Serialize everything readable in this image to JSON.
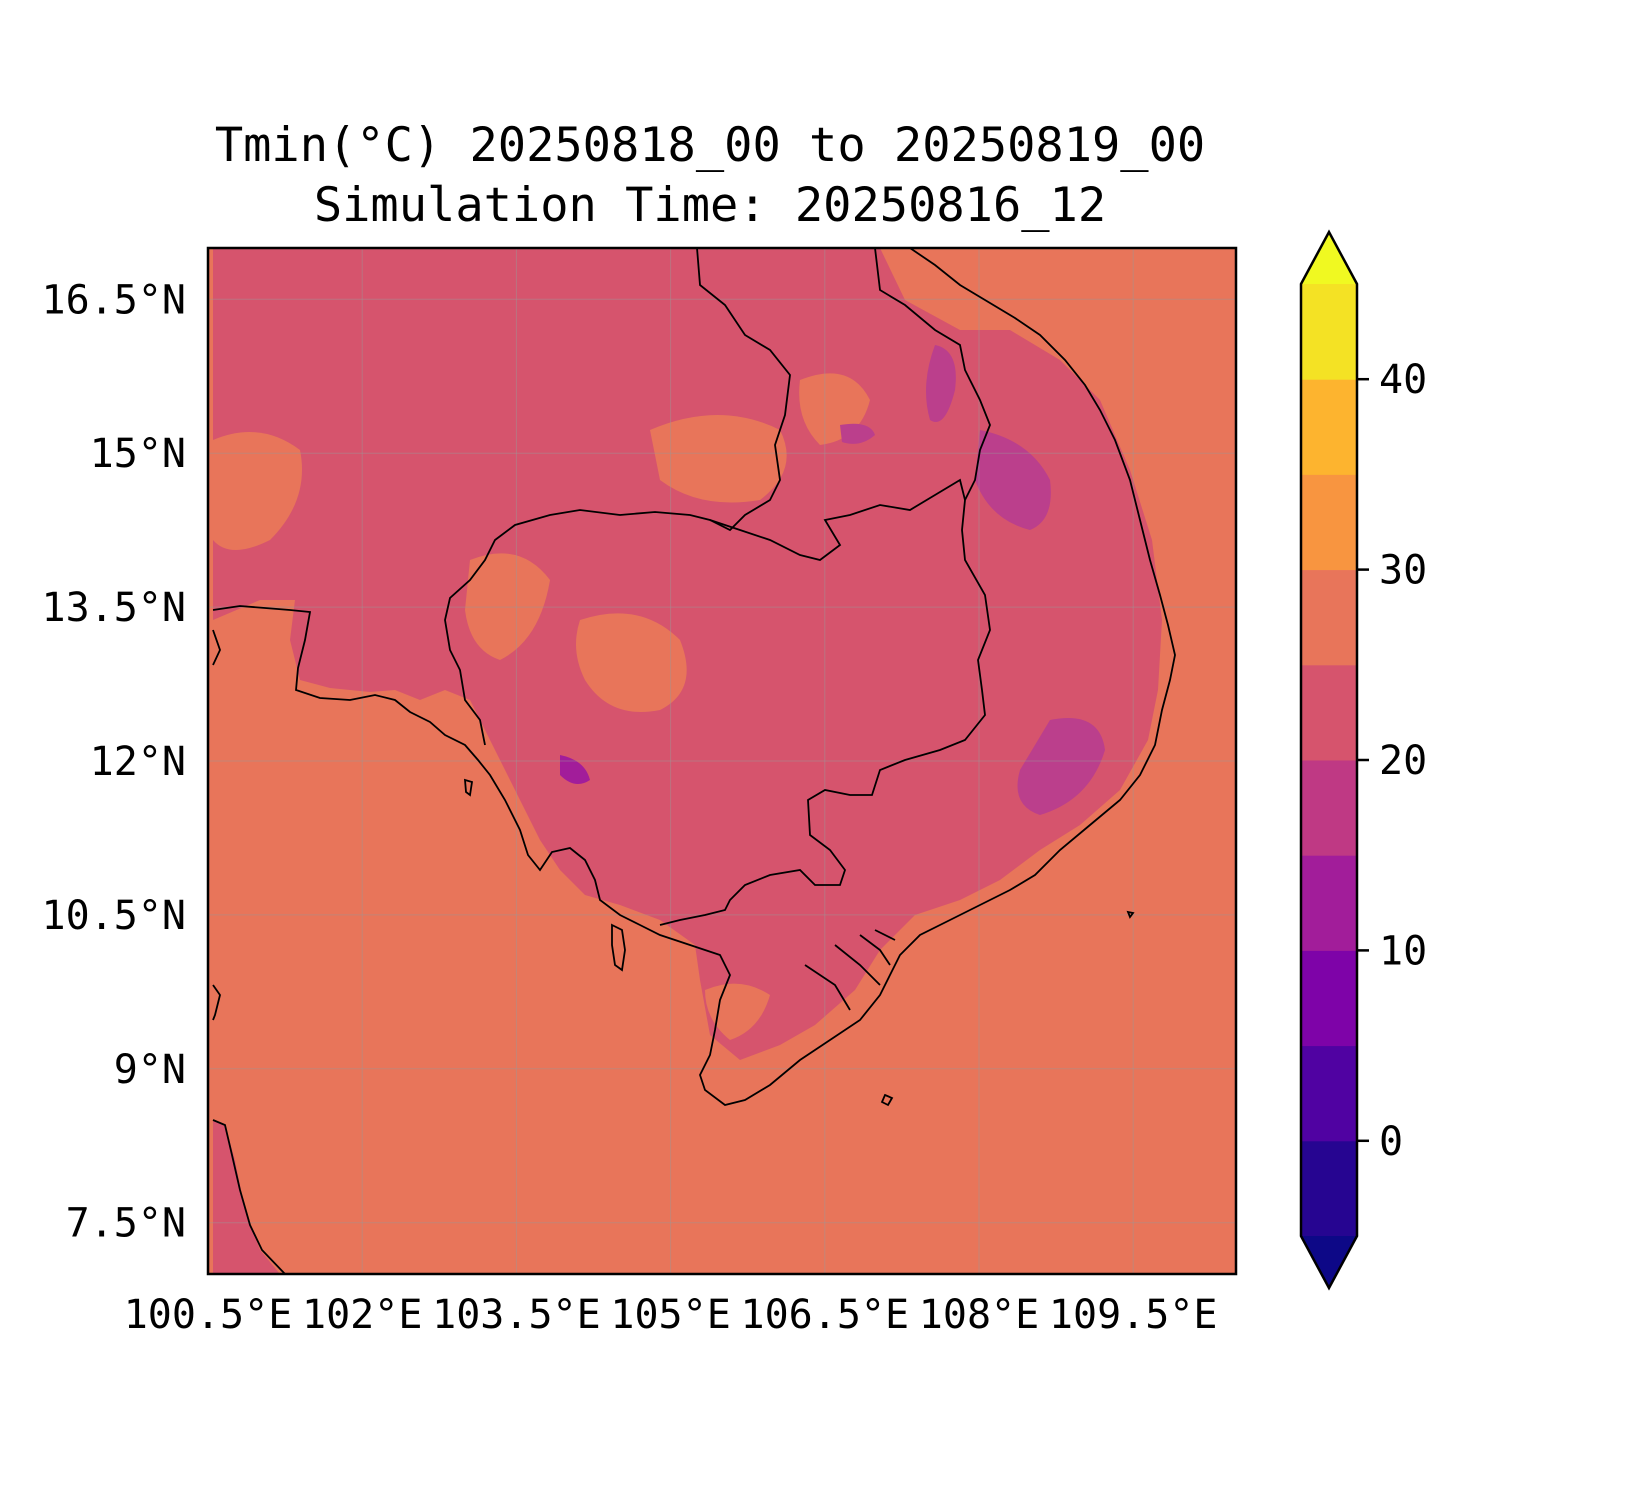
{
  "title": "Tmin(°C) 20250818_00 to 20250819_00",
  "subtitle": "Simulation Time: 20250816_12",
  "map": {
    "extent": {
      "lon_min": 100.5,
      "lon_max": 110.5,
      "lat_min": 7.0,
      "lat_max": 17.0
    },
    "lat_ticks": [
      {
        "value": 16.5,
        "label": "16.5°N"
      },
      {
        "value": 15.0,
        "label": "15°N"
      },
      {
        "value": 13.5,
        "label": "13.5°N"
      },
      {
        "value": 12.0,
        "label": "12°N"
      },
      {
        "value": 10.5,
        "label": "10.5°N"
      },
      {
        "value": 9.0,
        "label": "9°N"
      },
      {
        "value": 7.5,
        "label": "7.5°N"
      }
    ],
    "lon_ticks": [
      {
        "value": 100.5,
        "label": "100.5°E"
      },
      {
        "value": 102.0,
        "label": "102°E"
      },
      {
        "value": 103.5,
        "label": "103.5°E"
      },
      {
        "value": 105.0,
        "label": "105°E"
      },
      {
        "value": 106.5,
        "label": "106.5°E"
      },
      {
        "value": 108.0,
        "label": "108°E"
      },
      {
        "value": 109.5,
        "label": "109.5°E"
      }
    ],
    "fill_colors": {
      "background_25_30": "#e8755a",
      "land_20_25": "#d6546d",
      "band_15_20": "#bb3f8c",
      "band_10_15": "#a21d9a"
    },
    "gridlines": true
  },
  "colorbar": {
    "vmin": -5,
    "vmax": 45,
    "extend": "both",
    "ticks": [
      {
        "value": 0,
        "label": "0"
      },
      {
        "value": 10,
        "label": "10"
      },
      {
        "value": 20,
        "label": "20"
      },
      {
        "value": 30,
        "label": "30"
      },
      {
        "value": 40,
        "label": "40"
      }
    ],
    "levels": [
      {
        "from": -5,
        "to": 0,
        "color": "#260591"
      },
      {
        "from": 0,
        "to": 5,
        "color": "#5002a2"
      },
      {
        "from": 5,
        "to": 10,
        "color": "#7e03a8"
      },
      {
        "from": 10,
        "to": 15,
        "color": "#a21d9a"
      },
      {
        "from": 15,
        "to": 20,
        "color": "#bf3984"
      },
      {
        "from": 20,
        "to": 25,
        "color": "#d6546d"
      },
      {
        "from": 25,
        "to": 30,
        "color": "#e8755a"
      },
      {
        "from": 30,
        "to": 35,
        "color": "#f89540"
      },
      {
        "from": 35,
        "to": 40,
        "color": "#fdb42f"
      },
      {
        "from": 40,
        "to": 45,
        "color": "#f4e224"
      }
    ],
    "under_color": "#0d0887",
    "over_color": "#f0f921"
  }
}
